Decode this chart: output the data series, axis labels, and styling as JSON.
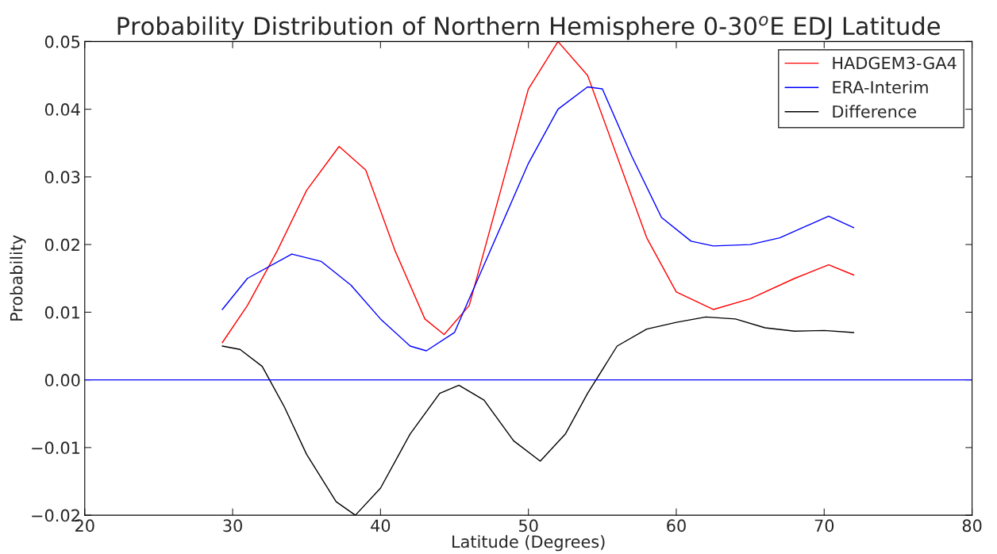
{
  "chart_data": {
    "type": "line",
    "title": "Probability Distribution of Northern Hemisphere 0-30$^{o}$E EDJ Latitude",
    "xlabel": "Latitude (Degrees)",
    "ylabel": "Probability",
    "series": [
      {
        "name": "HADGEM3-GA4",
        "color": "#ff0000",
        "x": [
          29.3,
          31,
          33,
          35,
          37.2,
          39,
          41,
          43,
          44.3,
          46,
          48,
          50,
          52,
          54,
          56,
          58,
          60,
          62.5,
          65,
          68,
          70.3,
          72
        ],
        "values": [
          0.0055,
          0.011,
          0.019,
          0.028,
          0.0345,
          0.031,
          0.019,
          0.009,
          0.0067,
          0.011,
          0.027,
          0.043,
          0.05,
          0.045,
          0.033,
          0.021,
          0.013,
          0.0104,
          0.012,
          0.015,
          0.017,
          0.0155
        ]
      },
      {
        "name": "ERA-Interim",
        "color": "#0000ff",
        "x": [
          29.3,
          31,
          34,
          36,
          38,
          40,
          42,
          43.1,
          45,
          47,
          50,
          52,
          54,
          55,
          57,
          59,
          61,
          62.5,
          65,
          67,
          70.3,
          72
        ],
        "values": [
          0.0104,
          0.015,
          0.0186,
          0.0175,
          0.014,
          0.009,
          0.005,
          0.0043,
          0.007,
          0.017,
          0.032,
          0.04,
          0.0433,
          0.043,
          0.033,
          0.024,
          0.0205,
          0.0198,
          0.02,
          0.021,
          0.0242,
          0.0225
        ]
      },
      {
        "name": "Difference",
        "color": "#000000",
        "x": [
          29.3,
          30.5,
          32,
          33.5,
          35,
          37,
          38.3,
          40,
          42,
          44,
          45.3,
          47,
          49,
          50.8,
          52.5,
          54,
          56,
          58,
          60,
          62,
          64,
          66,
          68,
          70,
          72
        ],
        "values": [
          0.005,
          0.0045,
          0.002,
          -0.004,
          -0.011,
          -0.018,
          -0.02,
          -0.016,
          -0.008,
          -0.002,
          -0.0008,
          -0.003,
          -0.009,
          -0.012,
          -0.008,
          -0.002,
          0.005,
          0.0075,
          0.0085,
          0.0093,
          0.009,
          0.0077,
          0.0072,
          0.0073,
          0.007
        ]
      }
    ],
    "ref_lines": [
      {
        "axis": "y",
        "value": 0,
        "color": "#0000ff"
      }
    ],
    "xlim": [
      20,
      80
    ],
    "xticks": [
      20,
      30,
      40,
      50,
      60,
      70,
      80
    ],
    "ylim": [
      -0.02,
      0.05
    ],
    "yticks": [
      {
        "value": -0.02,
        "label": "−0.02"
      },
      {
        "value": -0.01,
        "label": "−0.01"
      },
      {
        "value": 0,
        "label": "0.00"
      },
      {
        "value": 0.01,
        "label": "0.01"
      },
      {
        "value": 0.02,
        "label": "0.02"
      },
      {
        "value": 0.03,
        "label": "0.03"
      },
      {
        "value": 0.04,
        "label": "0.04"
      },
      {
        "value": 0.05,
        "label": "0.05"
      }
    ],
    "grid": false,
    "legend": "top right",
    "marker": "none",
    "line_style": "solid"
  }
}
